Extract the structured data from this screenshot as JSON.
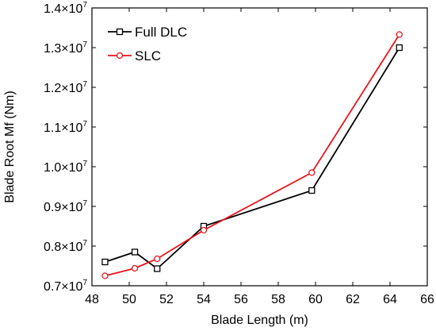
{
  "chart_data": {
    "type": "line",
    "xlabel": "Blade Length (m)",
    "ylabel": "Blade Root Mf (Nm)",
    "xlim": [
      48,
      66
    ],
    "ylim": [
      0.7,
      1.4
    ],
    "y_scale_exponent": 7,
    "y_tick_format": "mantissa ×10^7",
    "x_ticks": [
      48,
      50,
      52,
      54,
      56,
      58,
      60,
      62,
      64,
      66
    ],
    "y_ticks": [
      0.7,
      0.8,
      0.9,
      1.0,
      1.1,
      1.2,
      1.3,
      1.4
    ],
    "x_tick_labels": [
      "48",
      "50",
      "52",
      "54",
      "56",
      "58",
      "60",
      "62",
      "64",
      "66"
    ],
    "y_tick_labels": [
      "0.7",
      "0.8",
      "0.9",
      "1.0",
      "1.1",
      "1.2",
      "1.3",
      "1.4"
    ],
    "y_tick_multiplier": "×10",
    "y_tick_exponent": "7",
    "legend_position": "top-left",
    "grid": false,
    "series": [
      {
        "name": "Full DLC",
        "color": "#000000",
        "marker": "square",
        "x": [
          48.7,
          50.3,
          51.5,
          54.0,
          59.8,
          64.5
        ],
        "y": [
          0.76,
          0.785,
          0.743,
          0.85,
          0.94,
          1.3
        ]
      },
      {
        "name": "SLC",
        "color": "#e8141b",
        "marker": "circle",
        "x": [
          48.7,
          50.3,
          51.5,
          54.0,
          59.8,
          64.5
        ],
        "y": [
          0.725,
          0.744,
          0.768,
          0.84,
          0.985,
          1.333
        ]
      }
    ]
  }
}
